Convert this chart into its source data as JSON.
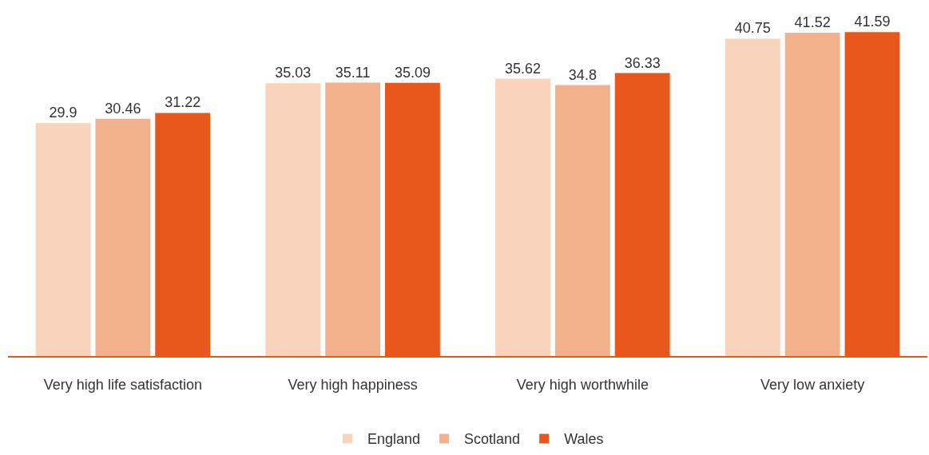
{
  "chart_data": {
    "type": "bar",
    "categories": [
      "Very high life satisfaction",
      "Very high happiness",
      "Very high worthwhile",
      "Very low anxiety"
    ],
    "series": [
      {
        "name": "England",
        "color": "#f9d3bb",
        "values": [
          29.9,
          35.03,
          35.62,
          40.75
        ]
      },
      {
        "name": "Scotland",
        "color": "#f2b18b",
        "values": [
          30.46,
          35.11,
          34.8,
          41.52
        ]
      },
      {
        "name": "Wales",
        "color": "#e8581c",
        "values": [
          31.22,
          35.09,
          36.33,
          41.59
        ]
      }
    ],
    "data_labels": true,
    "legend": "bottom"
  }
}
